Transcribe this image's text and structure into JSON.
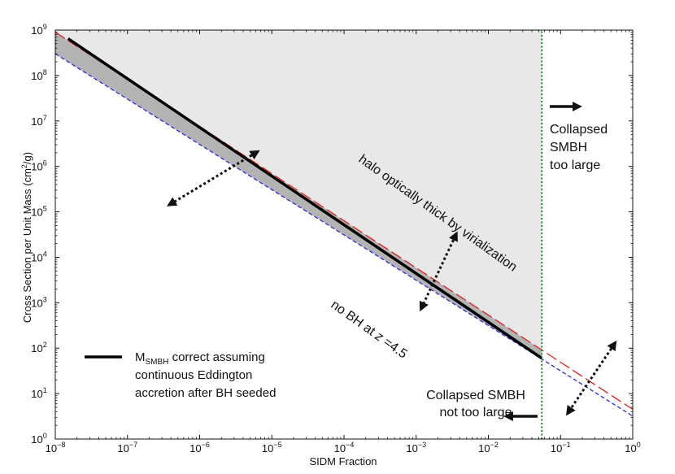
{
  "chart_data": {
    "type": "line",
    "x_scale": "log",
    "y_scale": "log",
    "xlim": [
      1e-08,
      1
    ],
    "ylim": [
      1,
      1000000000.0
    ],
    "xlabel": "SIDM Fraction",
    "ylabel_main": "Cross Section per Unit Mass (cm",
    "ylabel_sup": "2",
    "ylabel_end": "/g)",
    "x_ticks": [
      {
        "base": "10",
        "exp": "−8",
        "value": 1e-08
      },
      {
        "base": "10",
        "exp": "−7",
        "value": 1e-07
      },
      {
        "base": "10",
        "exp": "−6",
        "value": 1e-06
      },
      {
        "base": "10",
        "exp": "−5",
        "value": 1e-05
      },
      {
        "base": "10",
        "exp": "−4",
        "value": 0.0001
      },
      {
        "base": "10",
        "exp": "−3",
        "value": 0.001
      },
      {
        "base": "10",
        "exp": "−2",
        "value": 0.01
      },
      {
        "base": "10",
        "exp": "−1",
        "value": 0.1
      },
      {
        "base": "10",
        "exp": "0",
        "value": 1
      }
    ],
    "y_ticks": [
      {
        "base": "10",
        "exp": "0",
        "value": 1
      },
      {
        "base": "10",
        "exp": "1",
        "value": 10.0
      },
      {
        "base": "10",
        "exp": "2",
        "value": 100.0
      },
      {
        "base": "10",
        "exp": "3",
        "value": 1000.0
      },
      {
        "base": "10",
        "exp": "4",
        "value": 10000.0
      },
      {
        "base": "10",
        "exp": "5",
        "value": 100000.0
      },
      {
        "base": "10",
        "exp": "6",
        "value": 1000000.0
      },
      {
        "base": "10",
        "exp": "7",
        "value": 10000000.0
      },
      {
        "base": "10",
        "exp": "8",
        "value": 100000000.0
      },
      {
        "base": "10",
        "exp": "9",
        "value": 1000000000.0
      }
    ],
    "series": [
      {
        "name": "halo optically thick by virialization (red dashed)",
        "color": "#e0201c",
        "style": "long-dash",
        "x": [
          1e-08,
          1
        ],
        "y": [
          900000000,
          4.5
        ]
      },
      {
        "name": "no BH at z = 4.5 (blue dashed)",
        "color": "#2a2ae0",
        "style": "short-dash",
        "x": [
          1e-08,
          1
        ],
        "y": [
          300000000,
          3.2
        ]
      },
      {
        "name": "M_SMBH correct assuming continuous Eddington accretion after BH seeded",
        "color": "#000000",
        "style": "solid",
        "x": [
          1.5e-08,
          0.055
        ],
        "y": [
          650000000,
          60
        ]
      },
      {
        "name": "SIDM fraction limit (green dotted)",
        "color": "#1c8a1c",
        "style": "dotted",
        "x": [
          0.055,
          0.055
        ],
        "y": [
          1,
          1000000000.0
        ]
      }
    ],
    "light_region": {
      "x_max": 0.055,
      "y_max": 1000000000.0,
      "color": "#e8e8e8"
    },
    "dark_region": {
      "color": "#b3b3b3"
    },
    "annotations": {
      "virialization": "halo optically thick by virialization",
      "no_bh_prefix": "no BH at ",
      "no_bh_var": "z",
      "no_bh_suffix": " =4.5",
      "collapsed_large_1": "Collapsed",
      "collapsed_large_2": "SMBH",
      "collapsed_large_3": "too large",
      "collapsed_not_large_1": "Collapsed SMBH",
      "collapsed_not_large_2": "not too large"
    },
    "legend": {
      "label_prefix": "M",
      "label_sub": "SMBH",
      "label_rest_1": " correct assuming",
      "label_line_2": "continuous Eddington",
      "label_line_3": "accretion after BH seeded",
      "position": "lower-left"
    },
    "arrows": [
      {
        "name": "double-arrow-upper",
        "from": [
          6e-06,
          2000000.0
        ],
        "to": [
          4e-07,
          150000.0
        ]
      },
      {
        "name": "double-arrow-middle",
        "from": [
          0.0035,
          30000.0
        ],
        "to": [
          0.0012,
          800.0
        ]
      },
      {
        "name": "double-arrow-right",
        "from": [
          0.55,
          120
        ],
        "to": [
          0.13,
          4
        ]
      }
    ]
  }
}
